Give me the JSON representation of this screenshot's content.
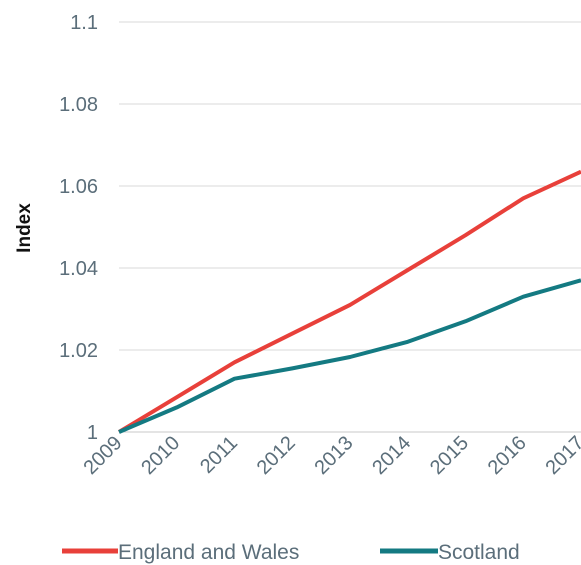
{
  "chart_data": {
    "type": "line",
    "title": "",
    "xlabel": "",
    "ylabel": "Index",
    "categories": [
      "2009",
      "2010",
      "2011",
      "2012",
      "2013",
      "2014",
      "2015",
      "2016",
      "2017"
    ],
    "ylim": [
      1,
      1.1
    ],
    "yticks": [
      "1",
      "1.02",
      "1.04",
      "1.06",
      "1.08",
      "1.1"
    ],
    "grid": true,
    "legend": "bottom",
    "series": [
      {
        "name": "England and Wales",
        "color": "#e8403a",
        "values": [
          1.0,
          1.0085,
          1.017,
          1.024,
          1.031,
          1.0395,
          1.048,
          1.057,
          1.0635
        ]
      },
      {
        "name": "Scotland",
        "color": "#147a82",
        "values": [
          1.0,
          1.006,
          1.013,
          1.0155,
          1.0183,
          1.022,
          1.027,
          1.033,
          1.037
        ]
      }
    ]
  }
}
